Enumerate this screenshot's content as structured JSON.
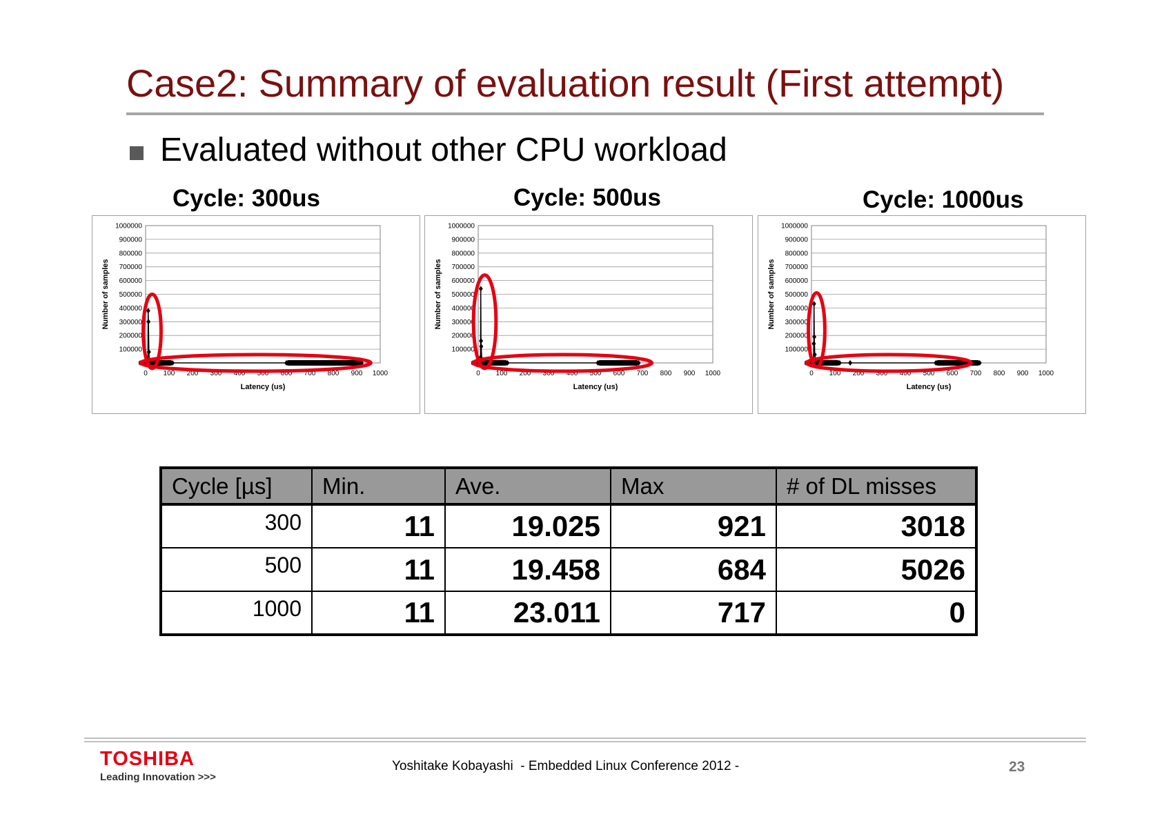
{
  "slide": {
    "title": "Case2: Summary of evaluation result (First attempt)",
    "bullet": "Evaluated without other CPU workload"
  },
  "colors": {
    "title": "#7a1010",
    "highlight_ring": "#e60012",
    "table_header_bg": "#999999",
    "brand": "#e60012"
  },
  "chart_data": [
    {
      "type": "line",
      "title": "Cycle: 300us",
      "xlabel": "Latency (us)",
      "ylabel": "Number of samples",
      "xlim": [
        0,
        1000
      ],
      "ylim": [
        0,
        1000000
      ],
      "x_ticks": [
        "0",
        "100",
        "200",
        "300",
        "400",
        "500",
        "600",
        "700",
        "800",
        "900",
        "1000"
      ],
      "y_ticks": [
        "1000000",
        "900000",
        "800000",
        "700000",
        "600000",
        "500000",
        "400000",
        "300000",
        "200000",
        "100000",
        "0"
      ],
      "grid": true,
      "series": [
        {
          "values": [
            [
              0,
              0
            ],
            [
              8,
              0
            ],
            [
              10,
              20000
            ],
            [
              11,
              380000
            ],
            [
              12,
              300000
            ],
            [
              14,
              80000
            ],
            [
              16,
              20000
            ],
            [
              20,
              5000
            ],
            [
              30,
              0
            ],
            [
              60,
              0
            ],
            [
              115,
              0
            ],
            [
              600,
              0
            ],
            [
              921,
              0
            ]
          ]
        }
      ],
      "dense_bands": [
        [
          0,
          115
        ],
        [
          600,
          921
        ]
      ],
      "highlights": [
        {
          "cx": 28,
          "cy": 230000,
          "rx": 38,
          "ry": 270000
        },
        {
          "cx": 470,
          "cy": 0,
          "rx": 490,
          "ry": 40000
        }
      ]
    },
    {
      "type": "line",
      "title": "Cycle: 500us",
      "xlabel": "Latency (us)",
      "ylabel": "Number of samples",
      "xlim": [
        0,
        1000
      ],
      "ylim": [
        0,
        1000000
      ],
      "x_ticks": [
        "0",
        "100",
        "200",
        "300",
        "400",
        "500",
        "600",
        "700",
        "800",
        "900",
        "1000"
      ],
      "y_ticks": [
        "1000000",
        "900000",
        "800000",
        "700000",
        "600000",
        "500000",
        "400000",
        "300000",
        "200000",
        "100000",
        "0"
      ],
      "grid": true,
      "series": [
        {
          "values": [
            [
              0,
              0
            ],
            [
              8,
              0
            ],
            [
              10,
              40000
            ],
            [
              11,
              540000
            ],
            [
              12,
              160000
            ],
            [
              13,
              120000
            ],
            [
              15,
              30000
            ],
            [
              20,
              5000
            ],
            [
              30,
              0
            ],
            [
              60,
              0
            ],
            [
              125,
              0
            ],
            [
              510,
              0
            ],
            [
              684,
              0
            ]
          ]
        }
      ],
      "dense_bands": [
        [
          0,
          125
        ],
        [
          510,
          684
        ]
      ],
      "highlights": [
        {
          "cx": 28,
          "cy": 300000,
          "rx": 48,
          "ry": 340000
        },
        {
          "cx": 360,
          "cy": 0,
          "rx": 380,
          "ry": 40000
        }
      ]
    },
    {
      "type": "line",
      "title": "Cycle: 1000us",
      "xlabel": "Latency (us)",
      "ylabel": "Number of samples",
      "xlim": [
        0,
        1000
      ],
      "ylim": [
        0,
        1000000
      ],
      "x_ticks": [
        "0",
        "100",
        "200",
        "300",
        "400",
        "500",
        "600",
        "700",
        "800",
        "900",
        "1000"
      ],
      "y_ticks": [
        "1000000",
        "900000",
        "800000",
        "700000",
        "600000",
        "500000",
        "400000",
        "300000",
        "200000",
        "100000",
        "0"
      ],
      "grid": true,
      "series": [
        {
          "values": [
            [
              0,
              0
            ],
            [
              8,
              0
            ],
            [
              10,
              140000
            ],
            [
              11,
              430000
            ],
            [
              12,
              190000
            ],
            [
              14,
              60000
            ],
            [
              18,
              10000
            ],
            [
              30,
              0
            ],
            [
              60,
              0
            ],
            [
              120,
              0
            ],
            [
              165,
              0
            ],
            [
              530,
              0
            ],
            [
              717,
              0
            ]
          ]
        }
      ],
      "dense_bands": [
        [
          0,
          120
        ],
        [
          530,
          717
        ]
      ],
      "highlights": [
        {
          "cx": 22,
          "cy": 240000,
          "rx": 35,
          "ry": 270000
        },
        {
          "cx": 330,
          "cy": 0,
          "rx": 350,
          "ry": 40000
        }
      ]
    }
  ],
  "table": {
    "headers": [
      "Cycle [µs]",
      "Min.",
      "Ave.",
      "Max",
      "# of DL misses"
    ],
    "rows": [
      {
        "cycle": "300",
        "min": "11",
        "ave": "19.025",
        "max": "921",
        "misses": "3018"
      },
      {
        "cycle": "500",
        "min": "11",
        "ave": "19.458",
        "max": "684",
        "misses": "5026"
      },
      {
        "cycle": "1000",
        "min": "11",
        "ave": "23.011",
        "max": "717",
        "misses": "0"
      }
    ]
  },
  "footer": {
    "logo": "TOSHIBA",
    "tagline": "Leading Innovation >>>",
    "text": "Yoshitake Kobayashi  - Embedded Linux Conference 2012 -",
    "page_number": "23"
  }
}
